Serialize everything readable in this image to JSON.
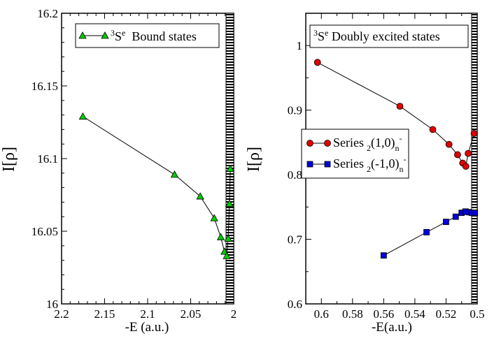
{
  "chart_data": [
    {
      "type": "line",
      "xlabel": "-E (a.u.)",
      "ylabel_base": "I",
      "ylabel_sym": "[ρ]",
      "xlim": [
        2.2,
        2.0
      ],
      "ylim": [
        16.0,
        16.2
      ],
      "xticks": [
        "2.2",
        "2.15",
        "2.1",
        "2.05",
        "2"
      ],
      "yticks": [
        "16",
        "16.05",
        "16.1",
        "16.15",
        "16.2"
      ],
      "legend": {
        "position": "top",
        "sup": "3",
        "main": "S",
        "sup2": "e",
        "rest": "  Bound states"
      },
      "series": [
        {
          "name": "3Se Bound states",
          "marker": "triangle",
          "color": "#00cc00",
          "x": [
            2.1753,
            2.0687,
            2.0389,
            2.0226,
            2.015,
            2.0107,
            2.0081,
            2.0064,
            2.005,
            2.004
          ],
          "y": [
            16.129,
            16.089,
            16.074,
            16.059,
            16.046,
            16.036,
            16.033,
            16.045,
            16.069,
            16.093
          ]
        }
      ]
    },
    {
      "type": "line",
      "xlabel": "-E(a.u.)",
      "ylabel_base": "I",
      "ylabel_sym": "[ρ]",
      "xlim": [
        0.61,
        0.5
      ],
      "ylim": [
        0.6,
        1.05
      ],
      "xticks": [
        "0.6",
        "0.58",
        "0.56",
        "0.54",
        "0.52",
        "0.5"
      ],
      "yticks": [
        "0.6",
        "0.7",
        "0.8",
        "0.9",
        "1"
      ],
      "title_box": {
        "sup": "3",
        "main": "S",
        "sup2": "e",
        "rest": " Doubly excited states"
      },
      "legend": {
        "position": "middle-right"
      },
      "series": [
        {
          "name": "Series",
          "sub": "2",
          "notation": "(1,0)",
          "subn": "n",
          "supn": "-",
          "marker": "circle",
          "color": "#e00000",
          "x": [
            0.6025,
            0.5496,
            0.5285,
            0.5181,
            0.5126,
            0.5093,
            0.5073,
            0.5058,
            0.502
          ],
          "y": [
            0.974,
            0.906,
            0.87,
            0.847,
            0.831,
            0.818,
            0.813,
            0.833,
            0.864
          ]
        },
        {
          "name": "Series",
          "sub": "2",
          "notation": "(-1,0)",
          "subn": "n",
          "supn": "-",
          "marker": "square",
          "color": "#0000dd",
          "x": [
            0.56,
            0.5325,
            0.52,
            0.5138,
            0.51,
            0.5075,
            0.5055,
            0.5035,
            0.5015
          ],
          "y": [
            0.675,
            0.711,
            0.727,
            0.735,
            0.741,
            0.743,
            0.742,
            0.741,
            0.741
          ]
        }
      ]
    }
  ]
}
